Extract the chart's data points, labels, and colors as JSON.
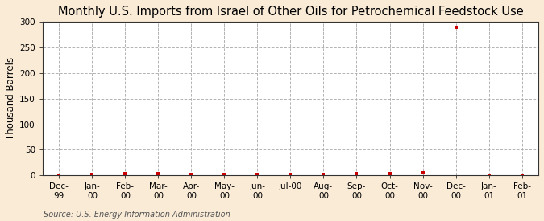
{
  "title": "Monthly U.S. Imports from Israel of Other Oils for Petrochemical Feedstock Use",
  "ylabel": "Thousand Barrels",
  "source": "Source: U.S. Energy Information Administration",
  "background_color": "#faebd7",
  "plot_background_color": "#ffffff",
  "x_labels": [
    "Dec-\n99",
    "Jan-\n00",
    "Feb-\n00",
    "Mar-\n00",
    "Apr-\n00",
    "May-\n00",
    "Jun-\n00",
    "Jul-00",
    "Aug-\n00",
    "Sep-\n00",
    "Oct-\n00",
    "Nov-\n00",
    "Dec-\n00",
    "Jan-\n01",
    "Feb-\n01"
  ],
  "x_positions": [
    0,
    1,
    2,
    3,
    4,
    5,
    6,
    7,
    8,
    9,
    10,
    11,
    12,
    13,
    14
  ],
  "y_values": [
    0,
    2,
    3,
    3,
    2,
    2,
    2,
    2,
    2,
    3,
    4,
    5,
    290,
    0,
    0
  ],
  "marker_color": "#cc0000",
  "grid_color": "#aaaaaa",
  "ylim": [
    0,
    300
  ],
  "yticks": [
    0,
    50,
    100,
    150,
    200,
    250,
    300
  ],
  "title_fontsize": 10.5,
  "axis_fontsize": 8.5,
  "tick_fontsize": 7.5,
  "source_fontsize": 7
}
